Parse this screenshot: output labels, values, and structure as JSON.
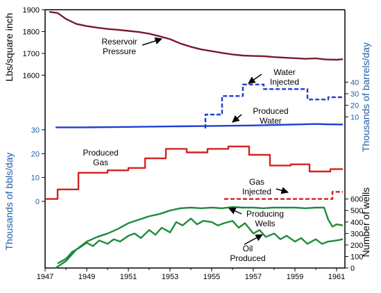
{
  "chart_data": {
    "type": "line",
    "x_range": [
      1947,
      1961.4
    ],
    "x_ticks": [
      "1947",
      "1949",
      "1951",
      "1953",
      "1955",
      "1957",
      "1959",
      "1961"
    ],
    "panels": [
      {
        "name": "pressure",
        "ylabel": "Lbs/square inch",
        "ylim": [
          1550,
          1900
        ],
        "y_ticks": [
          "1600",
          "1700",
          "1800",
          "1900"
        ],
        "series": [
          {
            "name": "Reservoir Pressure",
            "color": "#7a1a2a",
            "style": "solid",
            "x": [
              1947.2,
              1947.6,
              1948.0,
              1948.5,
              1949.0,
              1949.5,
              1950.0,
              1950.5,
              1951.0,
              1951.5,
              1952.0,
              1952.5,
              1953.0,
              1953.5,
              1954.0,
              1954.5,
              1955.0,
              1955.5,
              1956.0,
              1956.5,
              1957.0,
              1957.5,
              1958.0,
              1958.5,
              1959.0,
              1959.5,
              1960.0,
              1960.5,
              1961.0,
              1961.3
            ],
            "y": [
              1890,
              1885,
              1858,
              1835,
              1825,
              1818,
              1812,
              1808,
              1803,
              1798,
              1790,
              1778,
              1765,
              1745,
              1730,
              1718,
              1710,
              1702,
              1695,
              1690,
              1688,
              1687,
              1683,
              1680,
              1678,
              1675,
              1677,
              1672,
              1671,
              1673
            ]
          }
        ]
      },
      {
        "name": "water",
        "ylabel": "Thousands of barrels/day",
        "ylim": [
          0,
          45
        ],
        "y_ticks": [
          "10",
          "20",
          "30",
          "40"
        ],
        "series": [
          {
            "name": "Water Injected",
            "color": "#1f3fd0",
            "style": "dashed",
            "x": [
              1947.0,
              1954.7,
              1954.7,
              1955.5,
              1955.5,
              1956.5,
              1956.5,
              1957.5,
              1957.5,
              1959.6,
              1959.6,
              1960.6,
              1960.6,
              1961.3
            ],
            "y": [
              null,
              0,
              12,
              12,
              28,
              28,
              38,
              38,
              34,
              34,
              25,
              25,
              27,
              27
            ]
          }
        ]
      },
      {
        "name": "production",
        "ylabel": "Thousands of bbls/day",
        "ylim": [
          0,
          32
        ],
        "y_ticks": [
          "0",
          "10",
          "20",
          "30"
        ],
        "series": [
          {
            "name": "Produced Water",
            "color": "#1f3fd0",
            "style": "solid",
            "x": [
              1947.5,
              1949.0,
              1951.0,
              1953.0,
              1955.0,
              1957.0,
              1958.0,
              1959.0,
              1960.0,
              1960.5,
              1961.3
            ],
            "y": [
              31.0,
              31.0,
              31.2,
              31.4,
              31.6,
              31.8,
              32.0,
              32.2,
              32.4,
              32.3,
              32.2
            ]
          },
          {
            "name": "Produced Gas",
            "color": "#d42020",
            "style": "solid",
            "x": [
              1947.0,
              1947.6,
              1947.6,
              1948.6,
              1948.6,
              1950.0,
              1950.0,
              1951.0,
              1951.0,
              1951.8,
              1951.8,
              1952.8,
              1952.8,
              1953.8,
              1953.8,
              1954.8,
              1954.8,
              1955.8,
              1955.8,
              1956.8,
              1956.8,
              1957.8,
              1957.8,
              1958.8,
              1958.8,
              1959.7,
              1959.7,
              1960.7,
              1960.7,
              1961.3
            ],
            "y": [
              1,
              1,
              5,
              5,
              12,
              12,
              13,
              13,
              14,
              14,
              18,
              18,
              22,
              22,
              20.5,
              20.5,
              22,
              22,
              23,
              23,
              19.5,
              19.5,
              15,
              15,
              15.5,
              15.5,
              12.5,
              12.5,
              13.5,
              13.5
            ]
          },
          {
            "name": "Gas Injected",
            "color": "#d42020",
            "style": "dashed",
            "x": [
              1955.6,
              1960.8,
              1960.8,
              1961.3
            ],
            "y": [
              1,
              1,
              4,
              4
            ]
          }
        ]
      },
      {
        "name": "wells",
        "ylabel": "Number of wells",
        "ylim": [
          0,
          640
        ],
        "y_ticks": [
          "0",
          "100",
          "200",
          "300",
          "400",
          "500",
          "600"
        ],
        "series": [
          {
            "name": "Producing Wells",
            "color": "#1e8a3a",
            "style": "solid",
            "x": [
              1947.5,
              1948.0,
              1948.5,
              1949.0,
              1949.5,
              1950.0,
              1950.5,
              1951.0,
              1951.5,
              1952.0,
              1952.5,
              1953.0,
              1953.5,
              1954.0,
              1954.5,
              1955.0,
              1955.5,
              1956.0,
              1956.5,
              1957.0,
              1957.5,
              1958.0,
              1958.5,
              1959.0,
              1959.5,
              1960.0,
              1960.4,
              1960.6,
              1960.8,
              1961.0,
              1961.3
            ],
            "y": [
              0,
              60,
              160,
              230,
              270,
              300,
              340,
              390,
              420,
              450,
              470,
              500,
              520,
              525,
              520,
              525,
              520,
              530,
              525,
              525,
              520,
              525,
              525,
              525,
              520,
              525,
              525,
              420,
              360,
              380,
              370
            ]
          },
          {
            "name": "Oil Produced",
            "color": "#1e8a3a",
            "style": "solid",
            "x": [
              1947.6,
              1948.0,
              1948.3,
              1948.6,
              1949.0,
              1949.3,
              1949.6,
              1950.0,
              1950.3,
              1950.6,
              1951.0,
              1951.3,
              1951.6,
              1952.0,
              1952.3,
              1952.6,
              1953.0,
              1953.3,
              1953.6,
              1954.0,
              1954.3,
              1954.6,
              1955.0,
              1955.3,
              1955.6,
              1956.0,
              1956.3,
              1956.6,
              1957.0,
              1957.3,
              1957.6,
              1958.0,
              1958.3,
              1958.6,
              1959.0,
              1959.3,
              1959.6,
              1960.0,
              1960.3,
              1960.6,
              1961.0,
              1961.3
            ],
            "y": [
              40,
              80,
              140,
              170,
              220,
              190,
              240,
              210,
              250,
              230,
              280,
              300,
              260,
              330,
              290,
              350,
              310,
              400,
              370,
              430,
              380,
              410,
              400,
              370,
              390,
              410,
              350,
              390,
              300,
              330,
              270,
              300,
              250,
              280,
              230,
              260,
              210,
              250,
              210,
              230,
              240,
              250
            ]
          }
        ]
      }
    ],
    "annotations": [
      {
        "lines": [
          "Reservoir",
          "Pressure"
        ]
      },
      {
        "lines": [
          "Water",
          "Injected"
        ]
      },
      {
        "lines": [
          "Produced",
          "Water"
        ]
      },
      {
        "lines": [
          "Produced",
          "Gas"
        ]
      },
      {
        "lines": [
          "Gas",
          "Injected"
        ]
      },
      {
        "lines": [
          "Producing",
          "Wells"
        ]
      },
      {
        "lines": [
          "Oil",
          "Produced"
        ]
      }
    ]
  }
}
